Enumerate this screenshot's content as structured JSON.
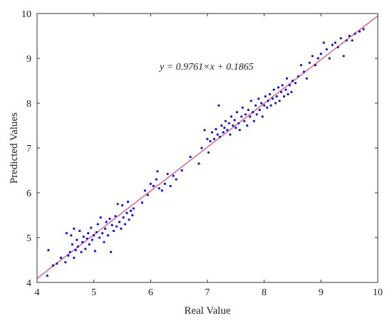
{
  "chart_data": {
    "type": "scatter",
    "xlabel": "Real Value",
    "ylabel": "Predicted Values",
    "xlim": [
      4,
      10
    ],
    "ylim": [
      4,
      10
    ],
    "xticks": [
      "4",
      "5",
      "6",
      "7",
      "8",
      "9",
      "10"
    ],
    "yticks": [
      "4",
      "5",
      "6",
      "7",
      "8",
      "9",
      "10"
    ],
    "grid": false,
    "annotation": "y = 0.9761×x + 0.1865",
    "fit_line": {
      "slope": 0.9761,
      "intercept": 0.1865,
      "color": "#e8578a"
    },
    "point_color": "#1010e0",
    "points": [
      [
        4.18,
        4.15
      ],
      [
        4.2,
        4.72
      ],
      [
        4.28,
        4.38
      ],
      [
        4.35,
        4.42
      ],
      [
        4.42,
        4.55
      ],
      [
        4.5,
        4.45
      ],
      [
        4.52,
        5.1
      ],
      [
        4.55,
        4.6
      ],
      [
        4.58,
        4.68
      ],
      [
        4.6,
        5.05
      ],
      [
        4.62,
        4.85
      ],
      [
        4.65,
        4.55
      ],
      [
        4.65,
        5.2
      ],
      [
        4.68,
        4.72
      ],
      [
        4.7,
        4.95
      ],
      [
        4.72,
        4.8
      ],
      [
        4.75,
        5.15
      ],
      [
        4.78,
        4.68
      ],
      [
        4.8,
        4.9
      ],
      [
        4.82,
        5.02
      ],
      [
        4.85,
        4.75
      ],
      [
        4.88,
        4.98
      ],
      [
        4.9,
        5.1
      ],
      [
        4.92,
        4.85
      ],
      [
        4.95,
        5.22
      ],
      [
        4.97,
        4.95
      ],
      [
        5.0,
        5.05
      ],
      [
        5.02,
        4.7
      ],
      [
        5.05,
        5.12
      ],
      [
        5.07,
        5.3
      ],
      [
        5.1,
        5.0
      ],
      [
        5.12,
        5.45
      ],
      [
        5.15,
        5.1
      ],
      [
        5.18,
        4.9
      ],
      [
        5.2,
        5.2
      ],
      [
        5.22,
        5.35
      ],
      [
        5.25,
        5.05
      ],
      [
        5.28,
        5.42
      ],
      [
        5.3,
        4.68
      ],
      [
        5.32,
        5.28
      ],
      [
        5.35,
        5.15
      ],
      [
        5.38,
        5.48
      ],
      [
        5.4,
        5.25
      ],
      [
        5.42,
        5.75
      ],
      [
        5.45,
        5.35
      ],
      [
        5.48,
        5.2
      ],
      [
        5.5,
        5.72
      ],
      [
        5.52,
        5.45
      ],
      [
        5.55,
        5.3
      ],
      [
        5.58,
        5.55
      ],
      [
        5.6,
        5.8
      ],
      [
        5.62,
        5.4
      ],
      [
        5.65,
        5.6
      ],
      [
        5.68,
        5.5
      ],
      [
        5.7,
        5.65
      ],
      [
        5.85,
        5.78
      ],
      [
        5.9,
        6.05
      ],
      [
        5.95,
        5.95
      ],
      [
        6.0,
        6.2
      ],
      [
        6.05,
        6.15
      ],
      [
        6.1,
        6.3
      ],
      [
        6.12,
        6.48
      ],
      [
        6.15,
        6.1
      ],
      [
        6.2,
        6.05
      ],
      [
        6.25,
        6.2
      ],
      [
        6.3,
        6.42
      ],
      [
        6.35,
        6.15
      ],
      [
        6.4,
        6.38
      ],
      [
        6.45,
        6.3
      ],
      [
        6.55,
        6.5
      ],
      [
        6.7,
        6.8
      ],
      [
        6.85,
        6.65
      ],
      [
        6.9,
        7.0
      ],
      [
        6.95,
        7.4
      ],
      [
        7.0,
        7.2
      ],
      [
        7.02,
        6.9
      ],
      [
        7.05,
        7.15
      ],
      [
        7.08,
        7.35
      ],
      [
        7.12,
        7.2
      ],
      [
        7.15,
        7.42
      ],
      [
        7.18,
        7.3
      ],
      [
        7.2,
        7.95
      ],
      [
        7.22,
        7.25
      ],
      [
        7.25,
        7.5
      ],
      [
        7.28,
        7.35
      ],
      [
        7.3,
        7.45
      ],
      [
        7.32,
        7.6
      ],
      [
        7.35,
        7.4
      ],
      [
        7.38,
        7.55
      ],
      [
        7.4,
        7.3
      ],
      [
        7.42,
        7.7
      ],
      [
        7.45,
        7.5
      ],
      [
        7.48,
        7.62
      ],
      [
        7.5,
        7.45
      ],
      [
        7.52,
        7.8
      ],
      [
        7.55,
        7.55
      ],
      [
        7.57,
        7.4
      ],
      [
        7.6,
        7.7
      ],
      [
        7.62,
        7.9
      ],
      [
        7.65,
        7.6
      ],
      [
        7.67,
        7.75
      ],
      [
        7.7,
        7.5
      ],
      [
        7.72,
        7.85
      ],
      [
        7.75,
        7.7
      ],
      [
        7.77,
        8.05
      ],
      [
        7.8,
        7.8
      ],
      [
        7.82,
        7.6
      ],
      [
        7.85,
        7.95
      ],
      [
        7.87,
        7.75
      ],
      [
        7.9,
        8.1
      ],
      [
        7.92,
        7.85
      ],
      [
        7.95,
        8.0
      ],
      [
        7.97,
        7.7
      ],
      [
        8.0,
        7.95
      ],
      [
        8.02,
        8.15
      ],
      [
        8.05,
        7.9
      ],
      [
        8.07,
        8.05
      ],
      [
        8.1,
        8.2
      ],
      [
        8.12,
        7.95
      ],
      [
        8.15,
        8.1
      ],
      [
        8.17,
        8.3
      ],
      [
        8.2,
        8.0
      ],
      [
        8.22,
        8.15
      ],
      [
        8.25,
        8.35
      ],
      [
        8.27,
        8.05
      ],
      [
        8.3,
        8.25
      ],
      [
        8.32,
        8.4
      ],
      [
        8.35,
        8.15
      ],
      [
        8.38,
        8.3
      ],
      [
        8.4,
        8.55
      ],
      [
        8.42,
        8.2
      ],
      [
        8.45,
        8.4
      ],
      [
        8.48,
        8.25
      ],
      [
        8.5,
        8.5
      ],
      [
        8.55,
        8.45
      ],
      [
        8.6,
        8.6
      ],
      [
        8.65,
        8.85
      ],
      [
        8.7,
        8.7
      ],
      [
        8.75,
        8.55
      ],
      [
        8.8,
        8.9
      ],
      [
        8.85,
        9.05
      ],
      [
        8.9,
        8.85
      ],
      [
        8.95,
        9.0
      ],
      [
        9.0,
        9.1
      ],
      [
        9.05,
        9.35
      ],
      [
        9.1,
        9.2
      ],
      [
        9.15,
        9.0
      ],
      [
        9.2,
        9.3
      ],
      [
        9.25,
        9.35
      ],
      [
        9.3,
        9.25
      ],
      [
        9.35,
        9.45
      ],
      [
        9.4,
        9.05
      ],
      [
        9.45,
        9.4
      ],
      [
        9.5,
        9.5
      ],
      [
        9.55,
        9.4
      ],
      [
        9.6,
        9.55
      ],
      [
        9.68,
        9.6
      ],
      [
        9.75,
        9.65
      ]
    ]
  }
}
